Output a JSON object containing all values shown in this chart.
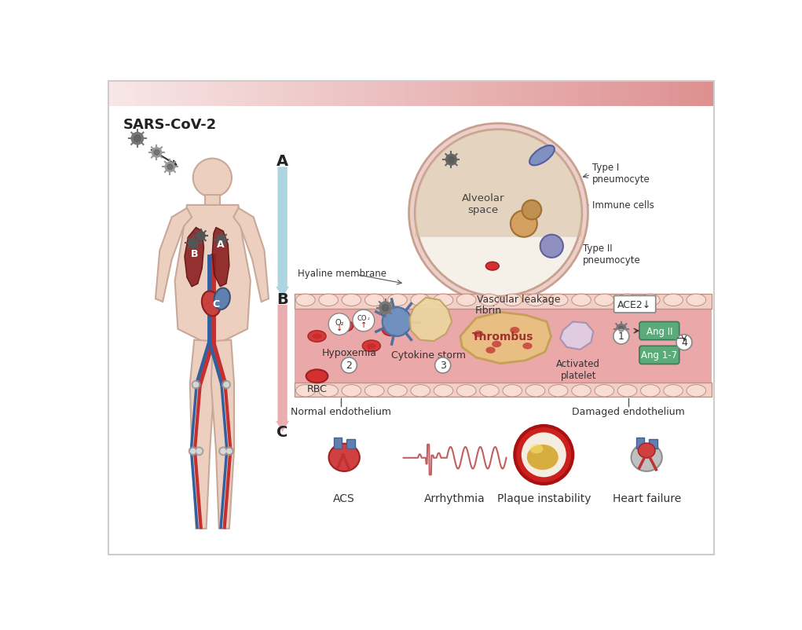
{
  "title_text": "SARS-CoV-2",
  "bg_top_color": "#E8A0A0",
  "bg_white": "#FFFFFF",
  "border_color": "#CCCCCC",
  "label_A": "A",
  "label_B": "B",
  "label_C": "C",
  "alveolar_text": "Alveolar\nspace",
  "typeI_text": "Type I\npneumocyte",
  "typeII_text": "Type II\npneumocyte",
  "immune_text": "Immune cells",
  "hyaline_text": "Hyaline membrane",
  "vascular_text": "Vascular leakage",
  "hypoxemia_text": "Hypoxemia",
  "rbc_text": "RBC",
  "cytokine_text": "Cytokine storm",
  "fibrin_text": "Fibrin",
  "thrombus_text": "Thrombus",
  "activated_text": "Activated\nplatelet",
  "ace2_text": "ACE2↓",
  "angII_text": "Ang II",
  "ang17_text": "Ang 1-7",
  "normal_endo_text": "Normal endothelium",
  "damaged_endo_text": "Damaged endothelium",
  "acs_text": "ACS",
  "arrhy_text": "Arrhythmia",
  "plaque_text": "Plaque instability",
  "heart_fail_text": "Heart failure",
  "vessel_color": "#E8A0A0",
  "vessel_border": "#C87070",
  "arrow_blue": "#90C8D8",
  "arrow_pink": "#E8A0A0",
  "text_color": "#222222",
  "alveolar_fill": "#F5F0E8",
  "green_pill": "#5BAA7A",
  "thrombus_color": "#E8C080",
  "body_color": "#EDCFC0",
  "body_edge": "#C8A898"
}
